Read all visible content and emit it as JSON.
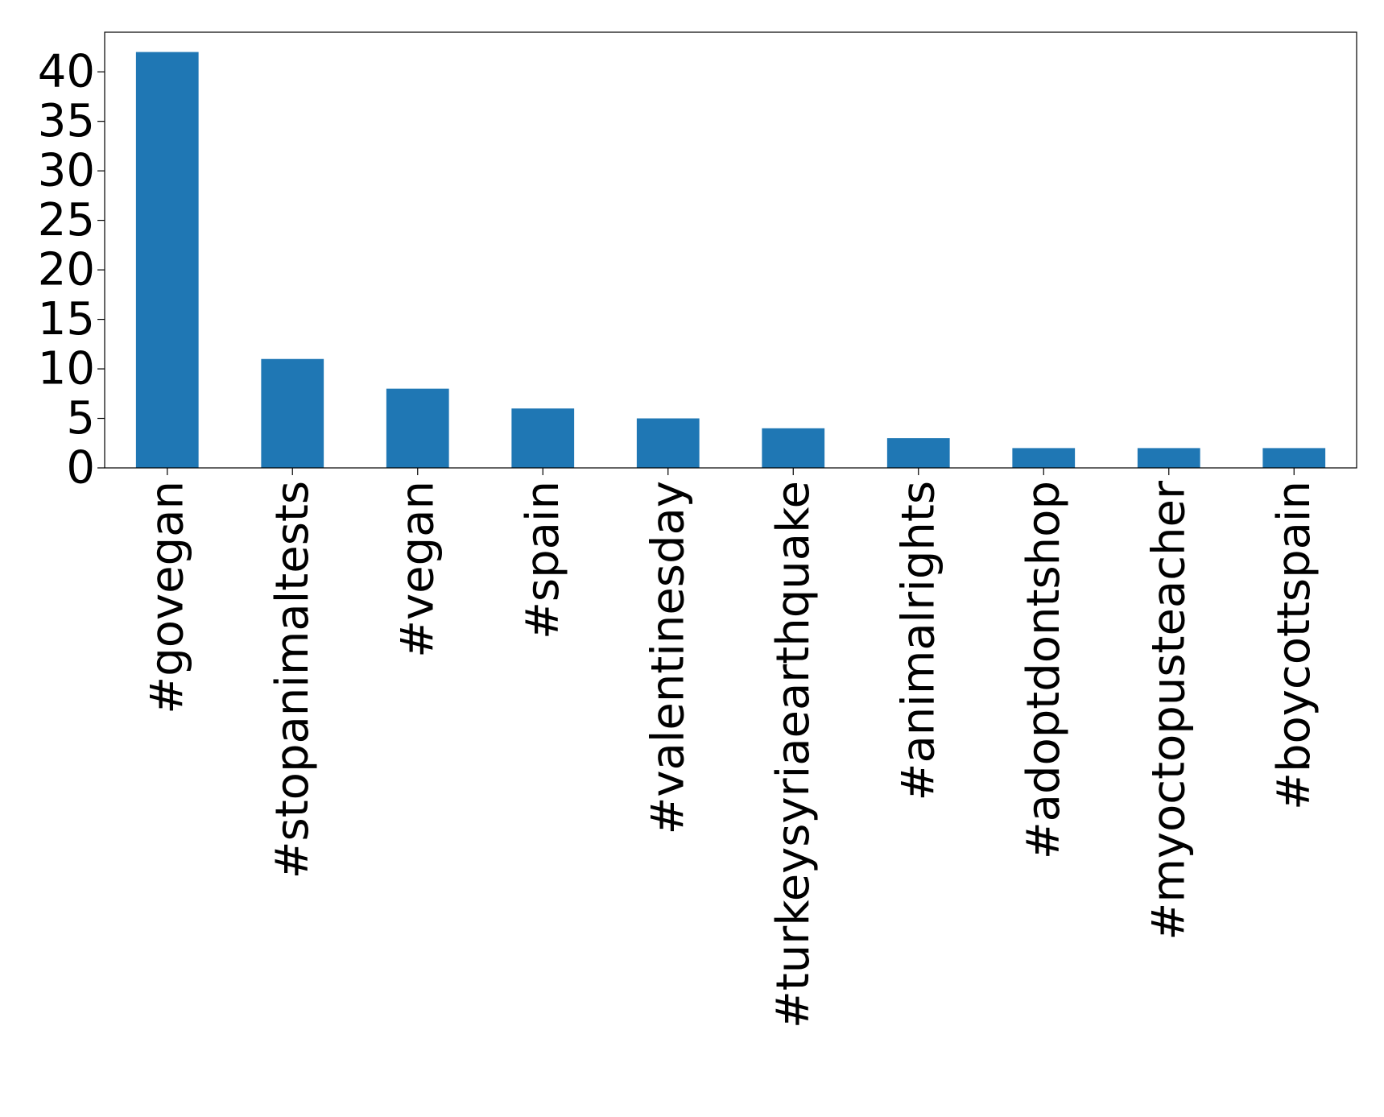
{
  "chart_data": {
    "type": "bar",
    "title": "",
    "xlabel": "",
    "ylabel": "",
    "categories": [
      "#govegan",
      "#stopanimaltests",
      "#vegan",
      "#spain",
      "#valentinesday",
      "#turkeysyriaearthquake",
      "#animalrights",
      "#adoptdontshop",
      "#myoctopusteacher",
      "#boycottspain"
    ],
    "values": [
      42,
      11,
      8,
      6,
      5,
      4,
      3,
      2,
      2,
      2
    ],
    "ylim": [
      0,
      44
    ],
    "yticks": [
      0,
      5,
      10,
      15,
      20,
      25,
      30,
      35,
      40
    ],
    "bar_color": "#1f77b4",
    "grid": false,
    "legend": "none",
    "x_tick_rotation": "vertical"
  }
}
